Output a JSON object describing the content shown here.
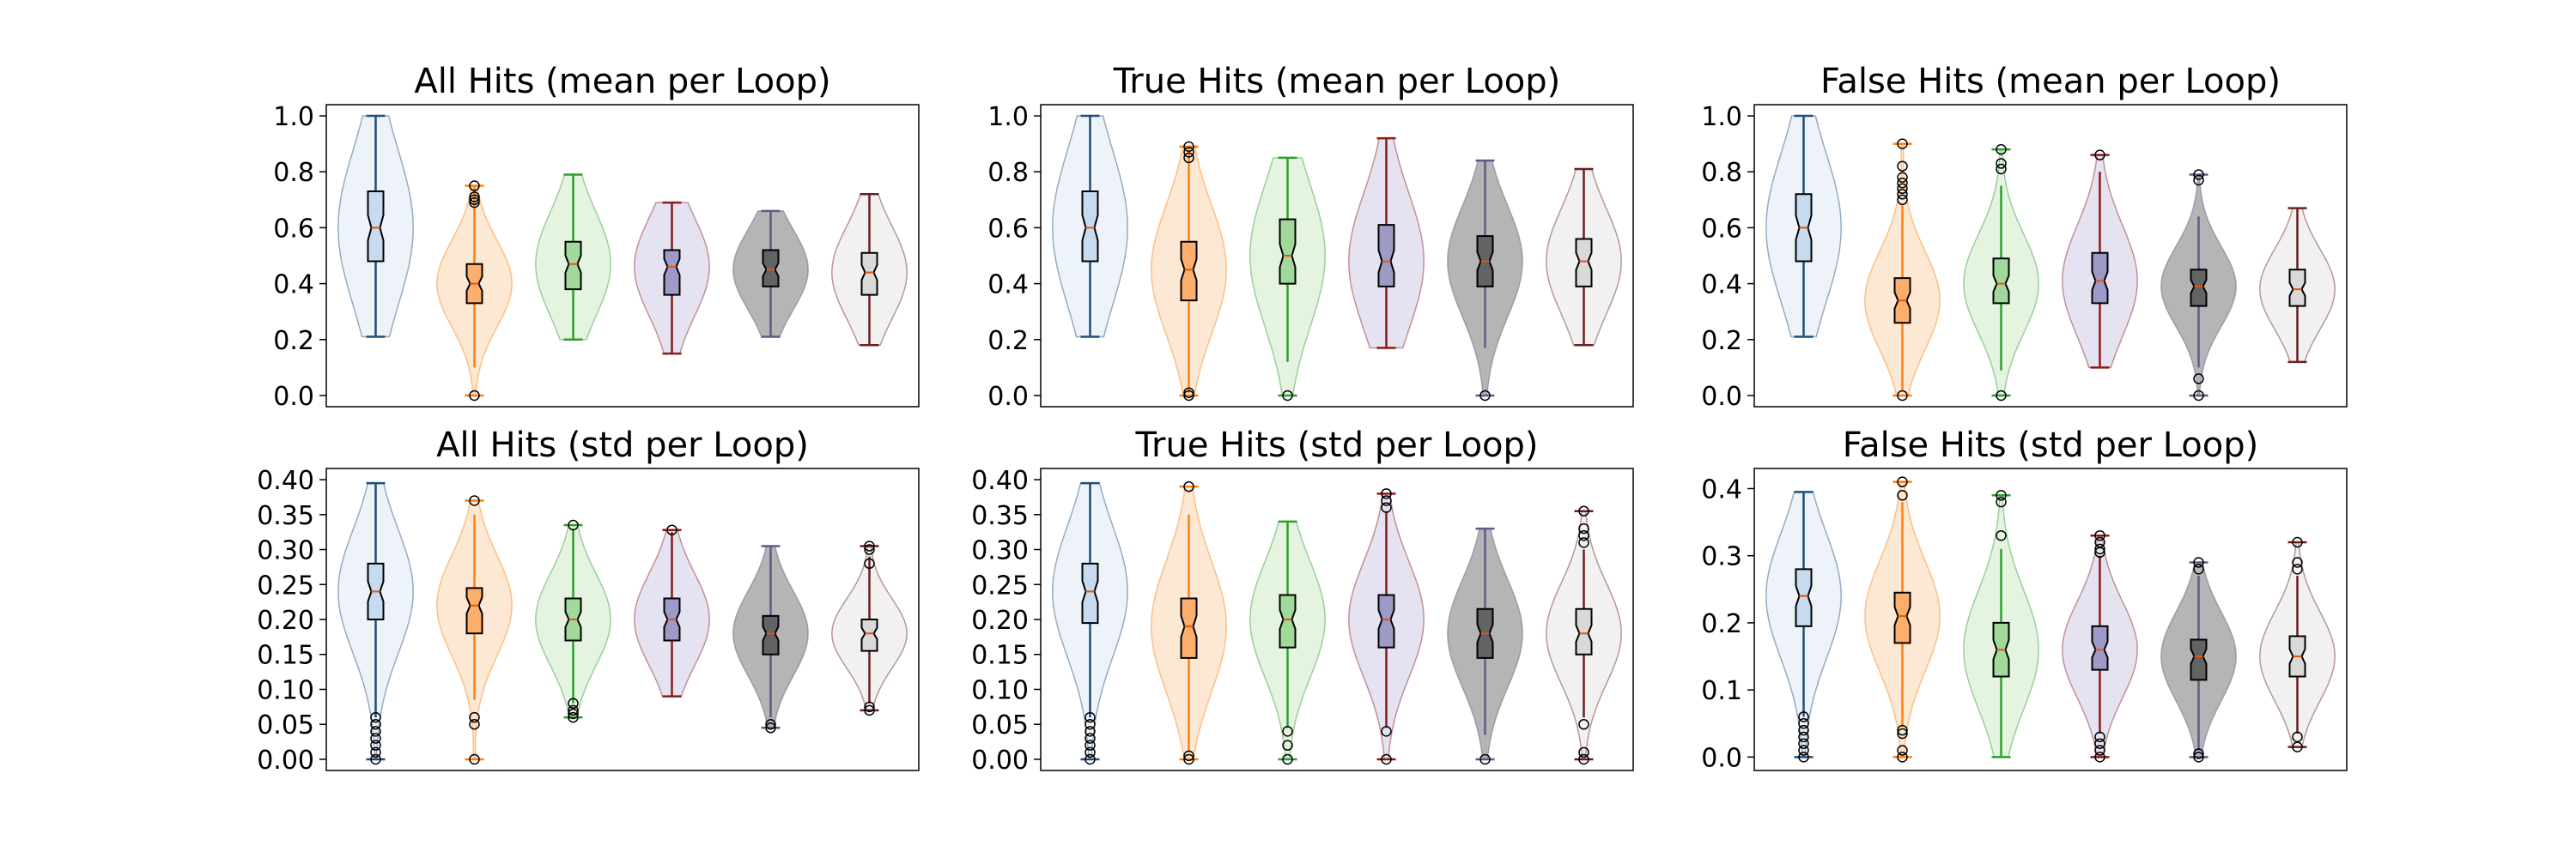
{
  "figure": {
    "title": "",
    "colors": [
      "#1f4e79",
      "#ff7f0e",
      "#2ca02c",
      "#8b1a1a",
      "#5c5c8a",
      "#6b1f1f"
    ],
    "fills": [
      "#c6dbef",
      "#fdae6b",
      "#a1d99b",
      "#9e9ac8",
      "#636363",
      "#d9d9d9"
    ],
    "violin_fills": [
      "#eaf1f8",
      "#fde4cd",
      "#dff2dc",
      "#e0def0",
      "#a8a8a8",
      "#eeeeee"
    ]
  },
  "chart_data": [
    {
      "type": "violin",
      "title": "All Hits (mean per Loop)",
      "ylim": [
        -0.04,
        1.04
      ],
      "yticks": [
        "0.0",
        "0.2",
        "0.4",
        "0.6",
        "0.8",
        "1.0"
      ],
      "ytick_values": [
        0.0,
        0.2,
        0.4,
        0.6,
        0.8,
        1.0
      ],
      "series": [
        {
          "min": 0.21,
          "q1": 0.48,
          "median": 0.6,
          "q3": 0.73,
          "max": 1.0,
          "outliers": []
        },
        {
          "min": 0.1,
          "q1": 0.33,
          "median": 0.4,
          "q3": 0.47,
          "max": 0.75,
          "outliers": [
            0.0,
            0.69,
            0.7,
            0.71,
            0.75
          ]
        },
        {
          "min": 0.2,
          "q1": 0.38,
          "median": 0.47,
          "q3": 0.55,
          "max": 0.79,
          "outliers": []
        },
        {
          "min": 0.15,
          "q1": 0.36,
          "median": 0.46,
          "q3": 0.52,
          "max": 0.69,
          "outliers": []
        },
        {
          "min": 0.21,
          "q1": 0.39,
          "median": 0.45,
          "q3": 0.52,
          "max": 0.66,
          "outliers": []
        },
        {
          "min": 0.18,
          "q1": 0.36,
          "median": 0.44,
          "q3": 0.51,
          "max": 0.72,
          "outliers": []
        }
      ]
    },
    {
      "type": "violin",
      "title": "True Hits (mean per Loop)",
      "ylim": [
        -0.04,
        1.04
      ],
      "yticks": [
        "0.0",
        "0.2",
        "0.4",
        "0.6",
        "0.8",
        "1.0"
      ],
      "ytick_values": [
        0.0,
        0.2,
        0.4,
        0.6,
        0.8,
        1.0
      ],
      "series": [
        {
          "min": 0.21,
          "q1": 0.48,
          "median": 0.6,
          "q3": 0.73,
          "max": 1.0,
          "outliers": []
        },
        {
          "min": 0.01,
          "q1": 0.34,
          "median": 0.45,
          "q3": 0.55,
          "max": 0.89,
          "outliers": [
            0.0,
            0.01,
            0.85,
            0.87,
            0.89
          ]
        },
        {
          "min": 0.12,
          "q1": 0.4,
          "median": 0.5,
          "q3": 0.63,
          "max": 0.85,
          "outliers": [
            0.0
          ]
        },
        {
          "min": 0.17,
          "q1": 0.39,
          "median": 0.48,
          "q3": 0.61,
          "max": 0.92,
          "outliers": []
        },
        {
          "min": 0.17,
          "q1": 0.39,
          "median": 0.48,
          "q3": 0.57,
          "max": 0.84,
          "outliers": [
            0.0
          ]
        },
        {
          "min": 0.18,
          "q1": 0.39,
          "median": 0.48,
          "q3": 0.56,
          "max": 0.81,
          "outliers": []
        }
      ]
    },
    {
      "type": "violin",
      "title": "False Hits (mean per Loop)",
      "ylim": [
        -0.04,
        1.04
      ],
      "yticks": [
        "0.0",
        "0.2",
        "0.4",
        "0.6",
        "0.8",
        "1.0"
      ],
      "ytick_values": [
        0.0,
        0.2,
        0.4,
        0.6,
        0.8,
        1.0
      ],
      "series": [
        {
          "min": 0.21,
          "q1": 0.48,
          "median": 0.6,
          "q3": 0.72,
          "max": 1.0,
          "outliers": []
        },
        {
          "min": 0.02,
          "q1": 0.26,
          "median": 0.34,
          "q3": 0.42,
          "max": 0.68,
          "outliers": [
            0.0,
            0.7,
            0.72,
            0.74,
            0.76,
            0.78,
            0.82,
            0.9
          ]
        },
        {
          "min": 0.09,
          "q1": 0.33,
          "median": 0.4,
          "q3": 0.49,
          "max": 0.75,
          "outliers": [
            0.0,
            0.81,
            0.83,
            0.88
          ]
        },
        {
          "min": 0.1,
          "q1": 0.33,
          "median": 0.41,
          "q3": 0.51,
          "max": 0.8,
          "outliers": [
            0.86
          ]
        },
        {
          "min": 0.1,
          "q1": 0.32,
          "median": 0.39,
          "q3": 0.45,
          "max": 0.64,
          "outliers": [
            0.0,
            0.06,
            0.77,
            0.79
          ]
        },
        {
          "min": 0.12,
          "q1": 0.32,
          "median": 0.38,
          "q3": 0.45,
          "max": 0.67,
          "outliers": []
        }
      ]
    },
    {
      "type": "violin",
      "title": "All Hits (std per Loop)",
      "ylim": [
        -0.016,
        0.416
      ],
      "yticks": [
        "0.00",
        "0.05",
        "0.10",
        "0.15",
        "0.20",
        "0.25",
        "0.30",
        "0.35",
        "0.40"
      ],
      "ytick_values": [
        0.0,
        0.05,
        0.1,
        0.15,
        0.2,
        0.25,
        0.3,
        0.35,
        0.4
      ],
      "series": [
        {
          "min": 0.06,
          "q1": 0.2,
          "median": 0.24,
          "q3": 0.28,
          "max": 0.395,
          "outliers": [
            0.0,
            0.01,
            0.02,
            0.03,
            0.04,
            0.05,
            0.06
          ]
        },
        {
          "min": 0.085,
          "q1": 0.18,
          "median": 0.22,
          "q3": 0.245,
          "max": 0.35,
          "outliers": [
            0.0,
            0.05,
            0.06,
            0.37
          ]
        },
        {
          "min": 0.08,
          "q1": 0.17,
          "median": 0.2,
          "q3": 0.23,
          "max": 0.33,
          "outliers": [
            0.06,
            0.065,
            0.07,
            0.08,
            0.335
          ]
        },
        {
          "min": 0.09,
          "q1": 0.17,
          "median": 0.2,
          "q3": 0.23,
          "max": 0.325,
          "outliers": [
            0.328
          ]
        },
        {
          "min": 0.06,
          "q1": 0.15,
          "median": 0.18,
          "q3": 0.205,
          "max": 0.305,
          "outliers": [
            0.045,
            0.05
          ]
        },
        {
          "min": 0.08,
          "q1": 0.155,
          "median": 0.18,
          "q3": 0.2,
          "max": 0.29,
          "outliers": [
            0.07,
            0.075,
            0.28,
            0.3,
            0.305
          ]
        }
      ]
    },
    {
      "type": "violin",
      "title": "True Hits (std per Loop)",
      "ylim": [
        -0.016,
        0.416
      ],
      "yticks": [
        "0.00",
        "0.05",
        "0.10",
        "0.15",
        "0.20",
        "0.25",
        "0.30",
        "0.35",
        "0.40"
      ],
      "ytick_values": [
        0.0,
        0.05,
        0.1,
        0.15,
        0.2,
        0.25,
        0.3,
        0.35,
        0.4
      ],
      "series": [
        {
          "min": 0.06,
          "q1": 0.195,
          "median": 0.24,
          "q3": 0.28,
          "max": 0.395,
          "outliers": [
            0.0,
            0.01,
            0.02,
            0.03,
            0.04,
            0.05,
            0.06
          ]
        },
        {
          "min": 0.01,
          "q1": 0.145,
          "median": 0.19,
          "q3": 0.23,
          "max": 0.35,
          "outliers": [
            0.0,
            0.005,
            0.39
          ]
        },
        {
          "min": 0.045,
          "q1": 0.16,
          "median": 0.2,
          "q3": 0.235,
          "max": 0.34,
          "outliers": [
            0.0,
            0.02,
            0.04
          ]
        },
        {
          "min": 0.045,
          "q1": 0.16,
          "median": 0.2,
          "q3": 0.235,
          "max": 0.355,
          "outliers": [
            0.0,
            0.04,
            0.36,
            0.37,
            0.38
          ]
        },
        {
          "min": 0.035,
          "q1": 0.145,
          "median": 0.18,
          "q3": 0.215,
          "max": 0.33,
          "outliers": [
            0.0
          ]
        },
        {
          "min": 0.06,
          "q1": 0.15,
          "median": 0.18,
          "q3": 0.215,
          "max": 0.3,
          "outliers": [
            0.0,
            0.01,
            0.05,
            0.31,
            0.32,
            0.33,
            0.355
          ]
        }
      ]
    },
    {
      "type": "violin",
      "title": "False Hits (std per Loop)",
      "ylim": [
        -0.02,
        0.43
      ],
      "yticks": [
        "0.0",
        "0.1",
        "0.2",
        "0.3",
        "0.4"
      ],
      "ytick_values": [
        0.0,
        0.1,
        0.2,
        0.3,
        0.4
      ],
      "series": [
        {
          "min": 0.06,
          "q1": 0.195,
          "median": 0.24,
          "q3": 0.28,
          "max": 0.395,
          "outliers": [
            0.0,
            0.01,
            0.02,
            0.03,
            0.04,
            0.05,
            0.06
          ]
        },
        {
          "min": 0.045,
          "q1": 0.17,
          "median": 0.21,
          "q3": 0.245,
          "max": 0.38,
          "outliers": [
            0.0,
            0.01,
            0.035,
            0.04,
            0.39,
            0.41
          ]
        },
        {
          "min": 0.0,
          "q1": 0.12,
          "median": 0.16,
          "q3": 0.2,
          "max": 0.31,
          "outliers": [
            0.33,
            0.38,
            0.39
          ]
        },
        {
          "min": 0.035,
          "q1": 0.13,
          "median": 0.16,
          "q3": 0.195,
          "max": 0.3,
          "outliers": [
            0.0,
            0.01,
            0.02,
            0.03,
            0.305,
            0.31,
            0.32,
            0.33
          ]
        },
        {
          "min": 0.01,
          "q1": 0.115,
          "median": 0.15,
          "q3": 0.175,
          "max": 0.27,
          "outliers": [
            0.0,
            0.005,
            0.28,
            0.29
          ]
        },
        {
          "min": 0.035,
          "q1": 0.12,
          "median": 0.15,
          "q3": 0.18,
          "max": 0.27,
          "outliers": [
            0.015,
            0.03,
            0.28,
            0.29,
            0.32
          ]
        }
      ]
    }
  ]
}
